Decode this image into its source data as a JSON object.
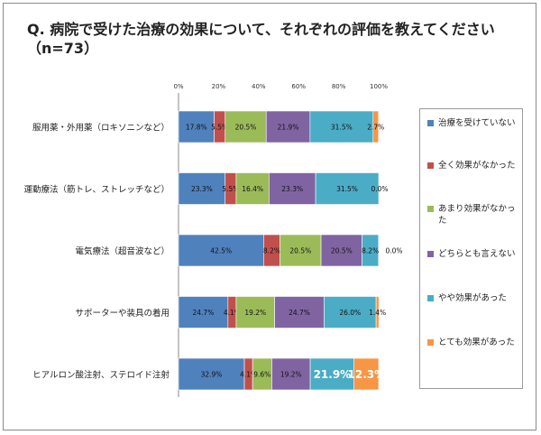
{
  "title": "Q. 病院で受けた治療の効果について、それぞれの評価を教えてください（n=73）",
  "chart_data": {
    "type": "bar",
    "orientation": "horizontal",
    "stacked": "percent",
    "title": "Q. 病院で受けた治療の効果について、それぞれの評価を教えてください（n=73）",
    "x_ticks": [
      "0%",
      "20%",
      "40%",
      "60%",
      "80%",
      "100%"
    ],
    "xlim": [
      0,
      100
    ],
    "legend_position": "right",
    "categories": [
      "服用薬・外用薬（ロキソニンなど）",
      "運動療法（筋トレ、ストレッチなど）",
      "電気療法（超音波など）",
      "サポーターや装具の着用",
      "ヒアルロン酸注射、ステロイド注射"
    ],
    "series": [
      {
        "name": "治療を受けていない",
        "color": "#4f81bd",
        "values": [
          17.8,
          23.3,
          42.5,
          24.7,
          32.9
        ],
        "labels": [
          "17.8%",
          "23.3%",
          "42.5%",
          "24.7%",
          "32.9%"
        ]
      },
      {
        "name": "全く効果がなかった",
        "color": "#c0504d",
        "values": [
          5.5,
          5.5,
          8.2,
          4.1,
          4.1
        ],
        "labels": [
          "5.5%",
          "5.5%",
          "8.2%",
          "4.1%",
          "4.1%"
        ]
      },
      {
        "name": "あまり効果がなかった",
        "color": "#9bbb59",
        "values": [
          20.5,
          16.4,
          20.5,
          19.2,
          9.6
        ],
        "labels": [
          "20.5%",
          "16.4%",
          "20.5%",
          "19.2%",
          "9.6%"
        ]
      },
      {
        "name": "どちらとも言えない",
        "color": "#8064a2",
        "values": [
          21.9,
          23.3,
          20.5,
          24.7,
          19.2
        ],
        "labels": [
          "21.9%",
          "23.3%",
          "20.5%",
          "24.7%",
          "19.2%"
        ]
      },
      {
        "name": "やや効果があった",
        "color": "#4bacc6",
        "values": [
          31.5,
          31.5,
          8.2,
          26.0,
          21.9
        ],
        "labels": [
          "31.5%",
          "31.5%",
          "8.2%",
          "26.0%",
          "21.9%"
        ]
      },
      {
        "name": "とても効果があった",
        "color": "#f79646",
        "values": [
          2.7,
          0.0,
          0.0,
          1.4,
          12.3
        ],
        "labels": [
          "2.7%",
          "0.0%",
          "0.0%",
          "1.4%",
          "12.3%"
        ]
      }
    ]
  }
}
